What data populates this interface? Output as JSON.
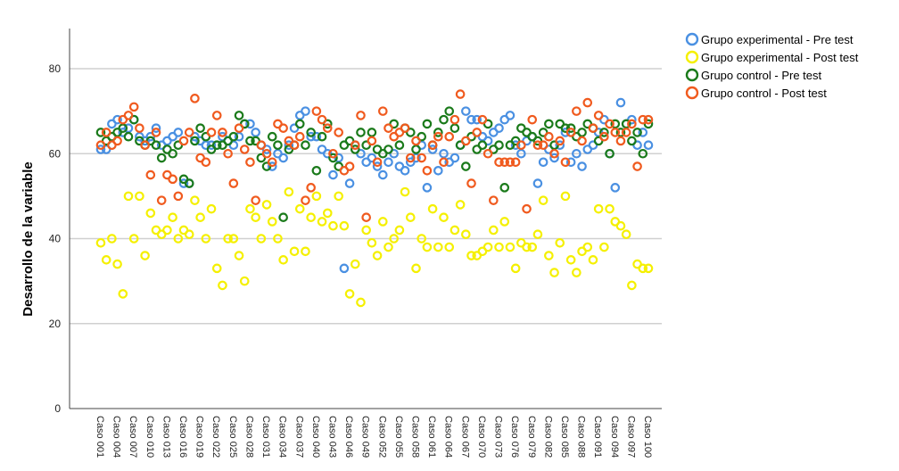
{
  "chart_data": {
    "type": "scatter",
    "title": "",
    "xlabel": "",
    "ylabel": "Desarrollo de la variable",
    "ylim": [
      0,
      85
    ],
    "yticks": [
      0,
      20,
      40,
      60,
      80
    ],
    "grid": true,
    "legend_position": "top-right",
    "x_tick_labels": [
      "Caso 001",
      "Caso 004",
      "Caso 007",
      "Caso 010",
      "Caso 013",
      "Caso 016",
      "Caso 019",
      "Caso 022",
      "Caso 025",
      "Caso 028",
      "Caso 031",
      "Caso 034",
      "Caso 037",
      "Caso 040",
      "Caso 043",
      "Caso 046",
      "Caso 049",
      "Caso 052",
      "Caso 055",
      "Caso 058",
      "Caso 061",
      "Caso 064",
      "Caso 067",
      "Caso 070",
      "Caso 073",
      "Caso 076",
      "Caso 079",
      "Caso 082",
      "Caso 085",
      "Caso 088",
      "Caso 091",
      "Caso 094",
      "Caso 097",
      "Caso 100"
    ],
    "n_cases": 100,
    "series": [
      {
        "name": "Grupo experimental - Pre test",
        "color": "#4a90e2",
        "values": [
          61,
          61,
          67,
          68,
          65,
          66,
          68,
          64,
          63,
          64,
          66,
          62,
          63,
          64,
          65,
          53,
          53,
          64,
          63,
          62,
          62,
          62,
          64,
          63,
          62,
          64,
          67,
          67,
          65,
          62,
          61,
          57,
          60,
          59,
          62,
          66,
          69,
          70,
          64,
          64,
          61,
          60,
          55,
          59,
          33,
          53,
          62,
          60,
          58,
          59,
          57,
          55,
          58,
          60,
          57,
          56,
          58,
          59,
          62,
          52,
          61,
          56,
          60,
          58,
          59,
          62,
          70,
          68,
          68,
          64,
          63,
          65,
          66,
          68,
          69,
          62,
          60,
          63,
          64,
          53,
          58,
          61,
          59,
          62,
          65,
          58,
          60,
          57,
          61,
          62,
          65,
          68,
          60,
          52,
          72,
          67,
          68,
          62,
          65,
          62
        ]
      },
      {
        "name": "Grupo experimental - Post test",
        "color": "#f5f000",
        "values": [
          39,
          35,
          40,
          34,
          27,
          50,
          40,
          50,
          36,
          46,
          42,
          41,
          42,
          45,
          40,
          42,
          41,
          49,
          45,
          40,
          47,
          33,
          29,
          40,
          40,
          36,
          30,
          47,
          45,
          40,
          48,
          44,
          40,
          35,
          51,
          37,
          47,
          37,
          45,
          50,
          44,
          46,
          43,
          50,
          43,
          27,
          34,
          25,
          42,
          39,
          36,
          44,
          38,
          40,
          42,
          51,
          45,
          33,
          40,
          38,
          47,
          38,
          45,
          38,
          42,
          48,
          41,
          36,
          36,
          37,
          38,
          42,
          38,
          44,
          38,
          33,
          39,
          38,
          38,
          41,
          49,
          36,
          32,
          39,
          50,
          35,
          32,
          37,
          38,
          35,
          47,
          38,
          47,
          44,
          43,
          41,
          29,
          34,
          33,
          33
        ]
      },
      {
        "name": "Grupo control - Pre test",
        "color": "#1a7a1a",
        "values": [
          65,
          63,
          64,
          65,
          66,
          64,
          68,
          63,
          62,
          63,
          62,
          59,
          61,
          60,
          62,
          54,
          53,
          63,
          66,
          64,
          61,
          62,
          62,
          63,
          64,
          69,
          67,
          63,
          63,
          59,
          57,
          64,
          62,
          45,
          61,
          62,
          67,
          62,
          65,
          56,
          64,
          67,
          59,
          57,
          62,
          63,
          61,
          65,
          62,
          65,
          61,
          60,
          61,
          67,
          62,
          66,
          65,
          61,
          64,
          67,
          62,
          65,
          68,
          70,
          66,
          62,
          57,
          64,
          61,
          62,
          67,
          61,
          62,
          52,
          62,
          63,
          66,
          65,
          64,
          63,
          65,
          67,
          62,
          67,
          66,
          66,
          64,
          65,
          67,
          66,
          63,
          65,
          60,
          67,
          65,
          67,
          63,
          65,
          60,
          67
        ]
      },
      {
        "name": "Grupo control - Post test",
        "color": "#f05a1e",
        "values": [
          62,
          65,
          62,
          63,
          68,
          69,
          71,
          66,
          62,
          55,
          65,
          49,
          55,
          54,
          50,
          63,
          65,
          73,
          59,
          58,
          65,
          69,
          65,
          60,
          53,
          66,
          61,
          58,
          49,
          62,
          60,
          58,
          67,
          66,
          63,
          62,
          64,
          49,
          52,
          70,
          68,
          66,
          60,
          65,
          56,
          57,
          62,
          69,
          45,
          63,
          58,
          70,
          66,
          64,
          65,
          66,
          59,
          63,
          59,
          56,
          62,
          64,
          58,
          64,
          68,
          74,
          63,
          53,
          65,
          68,
          60,
          49,
          58,
          58,
          58,
          58,
          62,
          47,
          68,
          62,
          62,
          64,
          60,
          63,
          58,
          65,
          70,
          63,
          72,
          66,
          69,
          64,
          67,
          65,
          63,
          65,
          67,
          57,
          68,
          68
        ]
      }
    ]
  }
}
